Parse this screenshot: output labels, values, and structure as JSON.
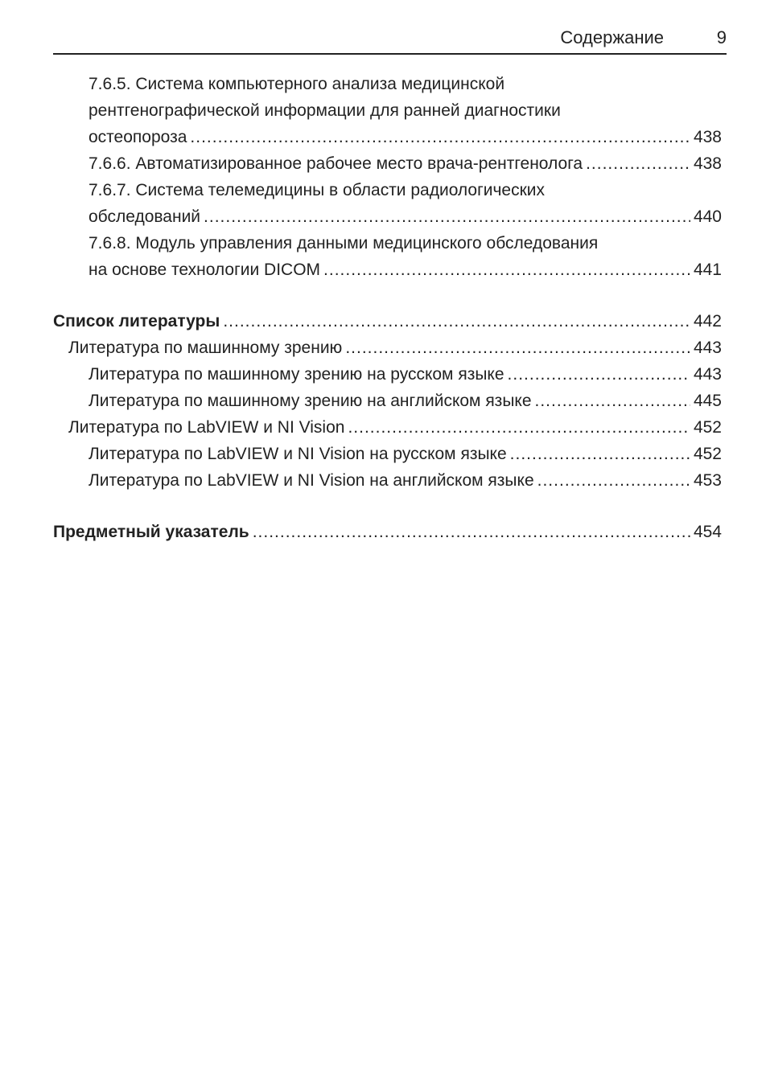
{
  "header": {
    "title": "Содержание",
    "page_number": "9"
  },
  "entries": [
    {
      "level": 3,
      "lines": [
        "7.6.5. Система компьютерного анализа медицинской",
        "рентгенографической информации для ранней диагностики"
      ],
      "last": "остеопороза",
      "page": "438"
    },
    {
      "level": 3,
      "lines": [],
      "last": "7.6.6. Автоматизированное рабочее место врача-рентгенолога",
      "page": "438"
    },
    {
      "level": 3,
      "lines": [
        "7.6.7. Система телемедицины в области радиологических"
      ],
      "last": "обследований",
      "page": "440"
    },
    {
      "level": 3,
      "lines": [
        "7.6.8. Модуль управления данными медицинского обследования"
      ],
      "last": "на основе технологии DICOM",
      "page": "441"
    },
    {
      "level": 1,
      "lines": [],
      "last": "Список литературы",
      "page": "442"
    },
    {
      "level": 2,
      "lines": [],
      "last": "Литература по машинному зрению",
      "page": "443"
    },
    {
      "level": 3,
      "lines": [],
      "last": "Литература по машинному зрению на русском языке",
      "page": "443"
    },
    {
      "level": 3,
      "lines": [],
      "last": "Литература по машинному зрению на английском языке",
      "page": "445"
    },
    {
      "level": 2,
      "lines": [],
      "last": "Литература по LabVIEW и NI Vision",
      "page": "452"
    },
    {
      "level": 3,
      "lines": [],
      "last": "Литература по LabVIEW и NI Vision на русском языке",
      "page": "452"
    },
    {
      "level": 3,
      "lines": [],
      "last": "Литература по LabVIEW и NI Vision на английском языке",
      "page": "453"
    },
    {
      "level": 1,
      "lines": [],
      "last": "Предметный указатель",
      "page": "454"
    }
  ]
}
